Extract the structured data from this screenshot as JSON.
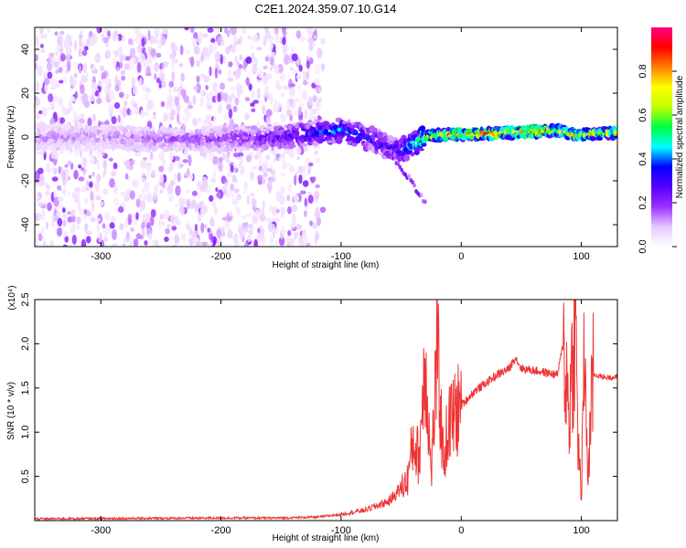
{
  "chart_data": [
    {
      "type": "heatmap",
      "title": "C2E1.2024.359.07.10.G14",
      "xlabel": "Height of straight line (km)",
      "ylabel": "Frequency (Hz)",
      "xlim": [
        -355,
        130
      ],
      "ylim": [
        -50,
        50
      ],
      "xticks": [
        -300,
        -200,
        -100,
        0,
        100
      ],
      "yticks": [
        -40,
        -20,
        0,
        20,
        40
      ],
      "colorbar": {
        "label": "Normalized spectral amplitude",
        "range": [
          0.0,
          1.0
        ],
        "ticks": [
          "0.0",
          "0.2",
          "0.4",
          "0.6",
          "0.8"
        ],
        "colors": [
          "#ffffff",
          "#e8c8ff",
          "#9b30ff",
          "#5500ff",
          "#0000ff",
          "#00ffff",
          "#00ff40",
          "#c0ff00",
          "#ffff00",
          "#ff8000",
          "#ff0000",
          "#ff0080"
        ]
      },
      "ridge": {
        "x": [
          -355,
          -300,
          -250,
          -200,
          -150,
          -120,
          -100,
          -85,
          -70,
          -60,
          -50,
          -40,
          -30,
          -20,
          0,
          40,
          80,
          95,
          130
        ],
        "frequency": [
          0,
          0,
          -1,
          -1,
          0,
          2,
          3,
          1,
          -2,
          -5,
          -6,
          -3,
          0,
          1,
          1,
          2,
          3,
          1,
          2
        ],
        "amplitude": [
          0.15,
          0.15,
          0.18,
          0.2,
          0.3,
          0.4,
          0.45,
          0.4,
          0.35,
          0.35,
          0.4,
          0.55,
          0.75,
          0.9,
          0.95,
          0.95,
          0.9,
          0.85,
          0.85
        ]
      },
      "noise_extent_x": [
        -355,
        -115
      ]
    },
    {
      "type": "line",
      "xlabel": "Height of straight line (km)",
      "ylabel": "SNR (10 * v/v)",
      "y_multiplier": "(x10⁴)",
      "xlim": [
        -355,
        130
      ],
      "ylim": [
        0,
        2.5
      ],
      "xticks": [
        -300,
        -200,
        -100,
        0,
        100
      ],
      "yticks": [
        "0.5",
        "1.0",
        "1.5",
        "2.0",
        "2.5"
      ],
      "color": "#ee3333",
      "x": [
        -355,
        -200,
        -150,
        -120,
        -100,
        -80,
        -60,
        -45,
        -40,
        -35,
        -30,
        -25,
        -20,
        -15,
        -10,
        0,
        10,
        20,
        30,
        40,
        45,
        50,
        60,
        80,
        85,
        90,
        95,
        97,
        100,
        103,
        105,
        110,
        120,
        130
      ],
      "y": [
        0.02,
        0.03,
        0.03,
        0.04,
        0.07,
        0.12,
        0.22,
        0.45,
        0.9,
        0.7,
        1.9,
        0.5,
        1.95,
        0.7,
        1.1,
        1.3,
        1.45,
        1.55,
        1.65,
        1.72,
        1.85,
        1.72,
        1.7,
        1.65,
        2.0,
        1.2,
        2.4,
        1.0,
        0.25,
        2.2,
        0.45,
        1.65,
        1.62,
        1.62
      ]
    }
  ]
}
